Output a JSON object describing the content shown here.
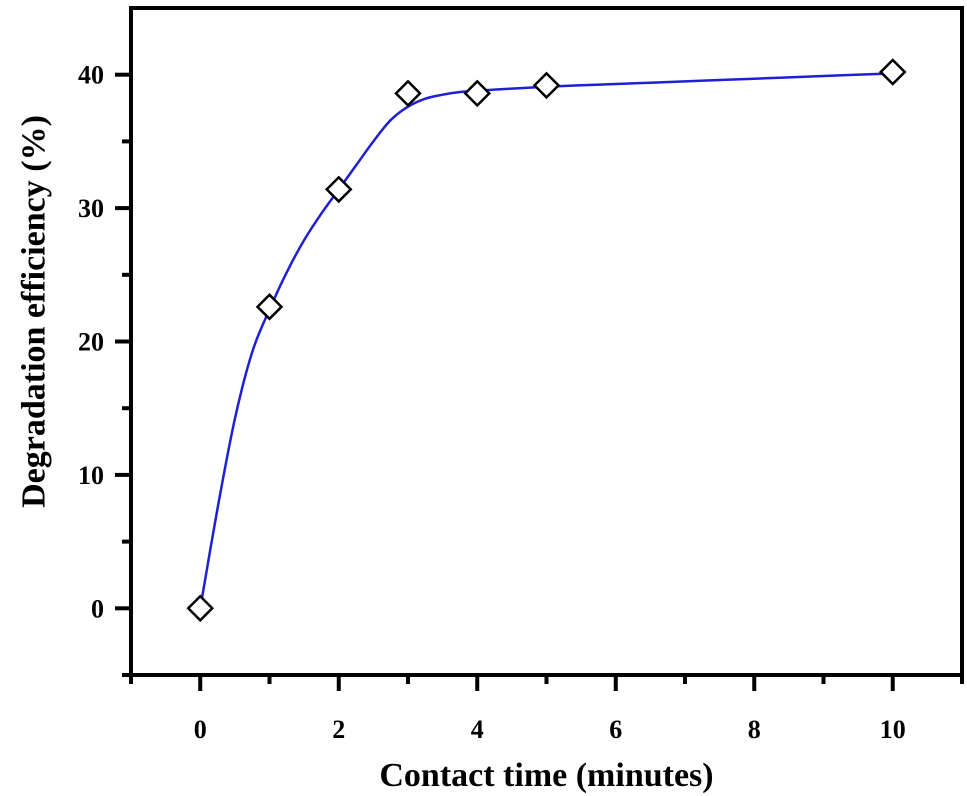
{
  "chart_data": {
    "type": "line",
    "title": "",
    "xlabel": "Contact time (minutes)",
    "ylabel": "Degradation efficiency (%)",
    "xlim": [
      -1,
      11
    ],
    "ylim": [
      -5,
      45
    ],
    "x_ticks": [
      0,
      2,
      4,
      6,
      8,
      10
    ],
    "x_minor_ticks": [
      -1,
      1,
      3,
      5,
      7,
      9,
      11
    ],
    "y_ticks": [
      0,
      10,
      20,
      30,
      40
    ],
    "y_minor_ticks": [
      -5,
      5,
      15,
      25,
      35
    ],
    "grid": false,
    "legend": "none",
    "series": [
      {
        "marker": "open-diamond",
        "line_color": "#1f1fd6",
        "x": [
          0,
          1,
          2,
          3,
          4,
          5,
          10
        ],
        "y": [
          0,
          22.6,
          31.4,
          38.6,
          38.6,
          39.2,
          40.2
        ]
      }
    ],
    "fit_curve": {
      "color": "#1f1fd6",
      "x": [
        0,
        0.25,
        0.5,
        0.75,
        1,
        1.25,
        1.5,
        1.75,
        2,
        2.25,
        2.5,
        2.75,
        3,
        3.25,
        3.5,
        3.75,
        4,
        5,
        6,
        7,
        8,
        9,
        10
      ],
      "y": [
        0,
        7.5,
        14.2,
        19.2,
        22.4,
        25.2,
        27.6,
        29.6,
        31.4,
        33.2,
        35.0,
        36.6,
        37.6,
        38.2,
        38.5,
        38.7,
        38.8,
        39.1,
        39.3,
        39.5,
        39.7,
        39.9,
        40.1
      ]
    }
  }
}
